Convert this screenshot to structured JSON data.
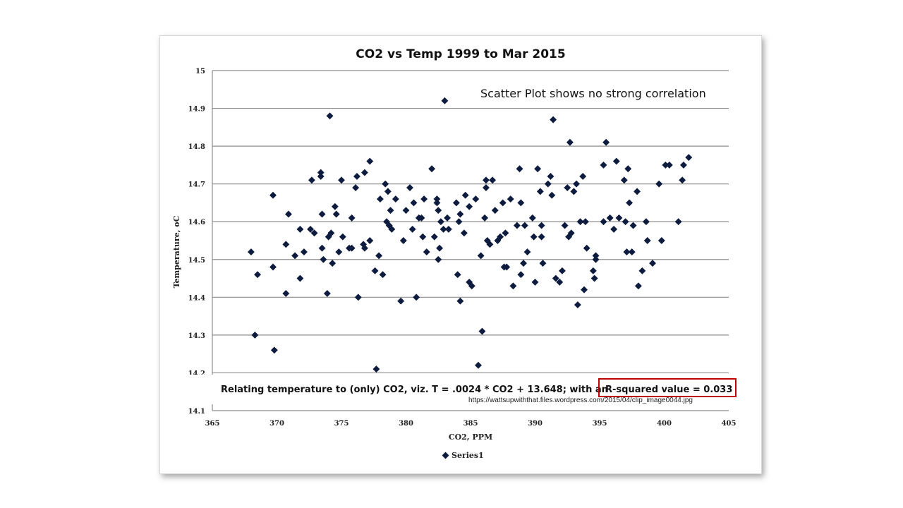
{
  "chart_data": {
    "type": "scatter",
    "title": "CO2 vs Temp 1999 to Mar 2015",
    "xlabel": "CO2, PPM",
    "ylabel": "Temperature, oC",
    "xlim": [
      365,
      405
    ],
    "ylim": [
      14.1,
      15
    ],
    "xticks": [
      "365",
      "370",
      "375",
      "380",
      "385",
      "390",
      "395",
      "400",
      "405"
    ],
    "yticks": [
      "14.1",
      "14.2",
      "14.3",
      "14.4",
      "14.5",
      "14.6",
      "14.7",
      "14.8",
      "14.9",
      "15"
    ],
    "grid": "horizontal",
    "legend_position": "bottom",
    "marker_color": "#0d1b3e",
    "annotation": "Scatter Plot shows no strong correlation",
    "equation_text": "Relating temperature to (only) CO2, viz. T = .0024 * CO2 + 13.648; with an",
    "rsquared_text": "R-squared value = 0.033",
    "highlight_color": "#c00000",
    "source_text": "https://wattsupwiththat.files.wordpress.com/2015/04/clip_image0044.jpg",
    "series": [
      {
        "name": "Series1",
        "points": [
          [
            368.0,
            14.52
          ],
          [
            368.3,
            14.3
          ],
          [
            368.5,
            14.46
          ],
          [
            369.7,
            14.67
          ],
          [
            369.7,
            14.48
          ],
          [
            369.8,
            14.26
          ],
          [
            370.7,
            14.54
          ],
          [
            370.7,
            14.41
          ],
          [
            370.9,
            14.62
          ],
          [
            371.4,
            14.51
          ],
          [
            371.8,
            14.58
          ],
          [
            371.8,
            14.45
          ],
          [
            372.1,
            14.52
          ],
          [
            372.6,
            14.58
          ],
          [
            372.7,
            14.71
          ],
          [
            372.9,
            14.57
          ],
          [
            373.4,
            14.72
          ],
          [
            373.4,
            14.73
          ],
          [
            373.5,
            14.53
          ],
          [
            373.5,
            14.62
          ],
          [
            373.6,
            14.5
          ],
          [
            373.9,
            14.41
          ],
          [
            374.0,
            14.56
          ],
          [
            374.1,
            14.88
          ],
          [
            374.2,
            14.57
          ],
          [
            374.3,
            14.49
          ],
          [
            374.5,
            14.64
          ],
          [
            374.6,
            14.62
          ],
          [
            374.8,
            14.52
          ],
          [
            375.0,
            14.71
          ],
          [
            375.1,
            14.56
          ],
          [
            375.6,
            14.53
          ],
          [
            375.8,
            14.61
          ],
          [
            375.8,
            14.53
          ],
          [
            376.1,
            14.69
          ],
          [
            376.2,
            14.72
          ],
          [
            376.3,
            14.4
          ],
          [
            376.7,
            14.54
          ],
          [
            376.8,
            14.73
          ],
          [
            376.8,
            14.53
          ],
          [
            377.2,
            14.76
          ],
          [
            377.2,
            14.55
          ],
          [
            377.6,
            14.47
          ],
          [
            377.7,
            14.21
          ],
          [
            377.9,
            14.51
          ],
          [
            378.0,
            14.66
          ],
          [
            378.2,
            14.46
          ],
          [
            378.4,
            14.7
          ],
          [
            378.5,
            14.6
          ],
          [
            378.6,
            14.68
          ],
          [
            378.7,
            14.59
          ],
          [
            378.8,
            14.63
          ],
          [
            378.9,
            14.58
          ],
          [
            379.2,
            14.66
          ],
          [
            379.6,
            14.39
          ],
          [
            379.8,
            14.55
          ],
          [
            380.0,
            14.63
          ],
          [
            380.3,
            14.69
          ],
          [
            380.5,
            14.58
          ],
          [
            380.6,
            14.65
          ],
          [
            380.8,
            14.4
          ],
          [
            381.0,
            14.61
          ],
          [
            381.2,
            14.61
          ],
          [
            381.3,
            14.56
          ],
          [
            381.4,
            14.66
          ],
          [
            381.6,
            14.52
          ],
          [
            382.0,
            14.74
          ],
          [
            382.2,
            14.56
          ],
          [
            382.4,
            14.66
          ],
          [
            382.4,
            14.65
          ],
          [
            382.5,
            14.63
          ],
          [
            382.5,
            14.5
          ],
          [
            382.6,
            14.53
          ],
          [
            382.7,
            14.6
          ],
          [
            382.9,
            14.58
          ],
          [
            383.0,
            14.92
          ],
          [
            383.2,
            14.61
          ],
          [
            383.3,
            14.58
          ],
          [
            383.9,
            14.65
          ],
          [
            384.0,
            14.46
          ],
          [
            384.1,
            14.6
          ],
          [
            384.2,
            14.62
          ],
          [
            384.2,
            14.39
          ],
          [
            384.5,
            14.57
          ],
          [
            384.6,
            14.67
          ],
          [
            384.9,
            14.44
          ],
          [
            384.9,
            14.64
          ],
          [
            385.1,
            14.43
          ],
          [
            385.4,
            14.66
          ],
          [
            385.6,
            14.22
          ],
          [
            385.8,
            14.51
          ],
          [
            385.9,
            14.31
          ],
          [
            386.1,
            14.61
          ],
          [
            386.2,
            14.71
          ],
          [
            386.2,
            14.69
          ],
          [
            386.3,
            14.55
          ],
          [
            386.5,
            14.54
          ],
          [
            386.7,
            14.71
          ],
          [
            386.9,
            14.63
          ],
          [
            387.1,
            14.55
          ],
          [
            387.3,
            14.56
          ],
          [
            387.5,
            14.65
          ],
          [
            387.6,
            14.48
          ],
          [
            387.7,
            14.57
          ],
          [
            387.8,
            14.48
          ],
          [
            388.1,
            14.66
          ],
          [
            388.3,
            14.43
          ],
          [
            388.6,
            14.59
          ],
          [
            388.8,
            14.74
          ],
          [
            388.9,
            14.65
          ],
          [
            388.9,
            14.46
          ],
          [
            389.1,
            14.49
          ],
          [
            389.2,
            14.59
          ],
          [
            389.4,
            14.52
          ],
          [
            389.8,
            14.61
          ],
          [
            389.9,
            14.56
          ],
          [
            390.0,
            14.44
          ],
          [
            390.2,
            14.74
          ],
          [
            390.4,
            14.68
          ],
          [
            390.5,
            14.59
          ],
          [
            390.5,
            14.56
          ],
          [
            390.6,
            14.49
          ],
          [
            391.0,
            14.7
          ],
          [
            391.2,
            14.72
          ],
          [
            391.3,
            14.67
          ],
          [
            391.4,
            14.87
          ],
          [
            391.6,
            14.45
          ],
          [
            391.9,
            14.44
          ],
          [
            392.1,
            14.47
          ],
          [
            392.3,
            14.59
          ],
          [
            392.5,
            14.69
          ],
          [
            392.6,
            14.56
          ],
          [
            392.7,
            14.81
          ],
          [
            392.8,
            14.57
          ],
          [
            393.0,
            14.68
          ],
          [
            393.2,
            14.7
          ],
          [
            393.3,
            14.38
          ],
          [
            393.5,
            14.6
          ],
          [
            393.7,
            14.72
          ],
          [
            393.8,
            14.42
          ],
          [
            393.9,
            14.6
          ],
          [
            394.0,
            14.53
          ],
          [
            394.5,
            14.47
          ],
          [
            394.6,
            14.45
          ],
          [
            394.7,
            14.51
          ],
          [
            394.7,
            14.5
          ],
          [
            395.3,
            14.75
          ],
          [
            395.3,
            14.6
          ],
          [
            395.5,
            14.81
          ],
          [
            395.8,
            14.61
          ],
          [
            396.1,
            14.58
          ],
          [
            396.3,
            14.76
          ],
          [
            396.5,
            14.61
          ],
          [
            396.9,
            14.71
          ],
          [
            397.0,
            14.6
          ],
          [
            397.1,
            14.52
          ],
          [
            397.2,
            14.74
          ],
          [
            397.3,
            14.65
          ],
          [
            397.5,
            14.52
          ],
          [
            397.6,
            14.59
          ],
          [
            397.9,
            14.68
          ],
          [
            398.0,
            14.43
          ],
          [
            398.3,
            14.47
          ],
          [
            398.6,
            14.6
          ],
          [
            398.7,
            14.55
          ],
          [
            399.1,
            14.49
          ],
          [
            399.6,
            14.7
          ],
          [
            399.8,
            14.55
          ],
          [
            400.1,
            14.75
          ],
          [
            400.4,
            14.75
          ],
          [
            401.1,
            14.6
          ],
          [
            401.4,
            14.71
          ],
          [
            401.5,
            14.75
          ],
          [
            401.9,
            14.77
          ]
        ]
      }
    ]
  }
}
